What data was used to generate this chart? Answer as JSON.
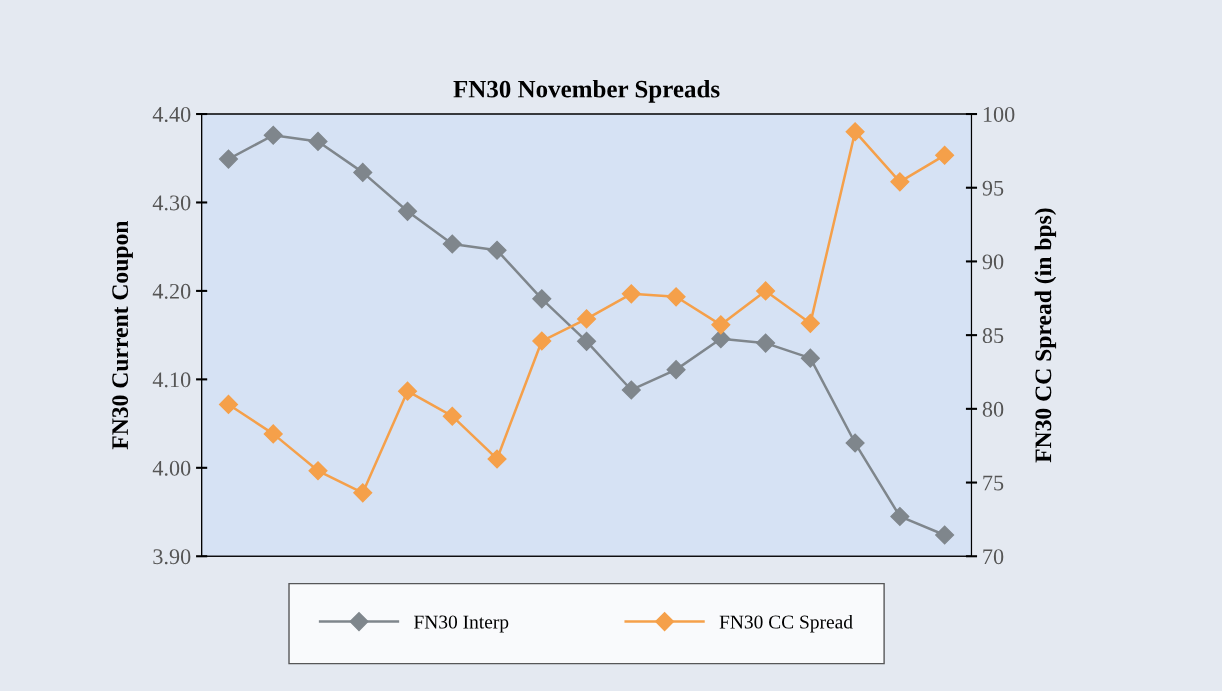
{
  "chart_data": {
    "type": "line",
    "title": "FN30 November Spreads",
    "ylabel": "FN30 Current Coupon",
    "y2label": "FN30 CC Spread (in bps)",
    "categories": [
      null,
      null,
      null,
      null,
      null,
      null,
      null,
      null,
      null,
      null,
      null,
      null,
      null,
      null,
      null,
      null,
      null
    ],
    "series": [
      {
        "name": "FN30 Interp",
        "color": "#7f868c",
        "values": [
          4.349,
          4.376,
          4.369,
          4.334,
          4.29,
          4.253,
          4.246,
          4.191,
          4.143,
          4.088,
          4.111,
          4.146,
          4.141,
          4.124,
          4.028,
          3.945,
          3.924
        ]
      },
      {
        "name": "FN30 CC Spread",
        "color": "#f5a04a",
        "axis": "y2",
        "values": [
          80.3,
          78.3,
          75.8,
          74.3,
          81.2,
          79.5,
          76.6,
          84.6,
          86.1,
          87.8,
          87.6,
          85.7,
          88.0,
          85.8,
          98.8,
          95.4,
          97.2
        ]
      }
    ],
    "ylim": [
      3.9,
      4.4
    ],
    "yticks": [
      {
        "value": 3.9,
        "label": "3.90"
      },
      {
        "value": 4.0,
        "label": "4.00"
      },
      {
        "value": 4.1,
        "label": "4.10"
      },
      {
        "value": 4.2,
        "label": "4.20"
      },
      {
        "value": 4.3,
        "label": "4.30"
      },
      {
        "value": 4.4,
        "label": "4.40"
      }
    ],
    "y2lim": [
      70,
      100
    ],
    "y2ticks": [
      70,
      75,
      80,
      85,
      90,
      95,
      100
    ],
    "marker": "diamond",
    "line_style": "solid",
    "grid": false,
    "legend": "bottom"
  }
}
